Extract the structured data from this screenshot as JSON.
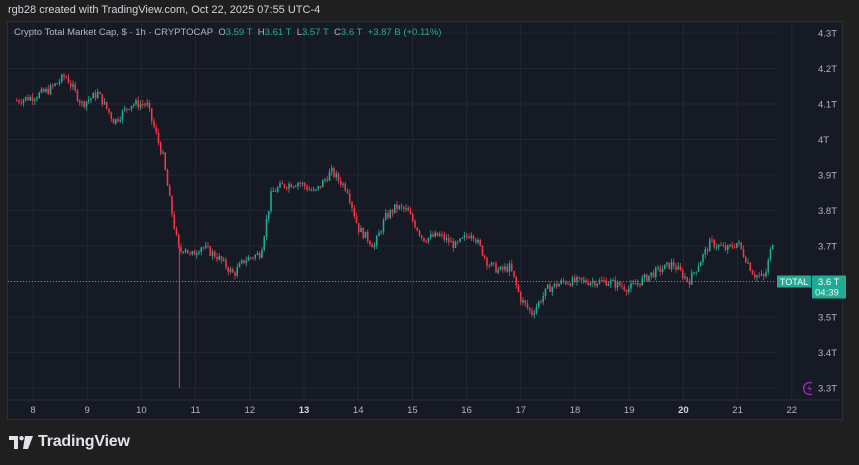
{
  "header": {
    "credit": "rgb28 created with TradingView.com, Oct 22, 2025 07:55 UTC-4"
  },
  "legend": {
    "title": "Crypto Total Market Cap, $ · 1h · CRYPTOCAP",
    "o_label": "O",
    "o": "3.59 T",
    "h_label": "H",
    "h": "3.61 T",
    "l_label": "L",
    "l": "3.57 T",
    "c_label": "C",
    "c": "3.6 T",
    "change": "+3.87 B (+0.11%)"
  },
  "price_label": {
    "symbol": "TOTAL",
    "price": "3.6 T",
    "countdown": "04:39"
  },
  "footer": {
    "brand": "TradingView"
  },
  "colors": {
    "up": "#22ab94",
    "down": "#f23645",
    "bg": "#161a25",
    "grid": "#232734",
    "axis_text": "#b2b5be",
    "lightning": "#9c27b0"
  },
  "chart_data": {
    "type": "candlestick",
    "title": "Crypto Total Market Cap, $ · 1h · CRYPTOCAP",
    "xlabel": "",
    "ylabel": "",
    "x_ticks": [
      "8",
      "9",
      "10",
      "11",
      "12",
      "13",
      "14",
      "15",
      "16",
      "17",
      "18",
      "19",
      "20",
      "21",
      "22"
    ],
    "x_ticks_bold": [
      "13",
      "20"
    ],
    "y_ticks": [
      "4.3T",
      "4.2T",
      "4.1T",
      "4T",
      "3.9T",
      "3.8T",
      "3.7T",
      "3.6T",
      "3.5T",
      "3.4T",
      "3.3T"
    ],
    "ylim": [
      3.27,
      4.33
    ],
    "grid": true,
    "approx_close_path": {
      "x_day": [
        7.7,
        8.0,
        8.3,
        8.6,
        8.9,
        9.2,
        9.5,
        9.8,
        10.1,
        10.4,
        10.5,
        10.6,
        10.7,
        10.8,
        10.9,
        11.1,
        11.4,
        11.7,
        11.9,
        12.2,
        12.4,
        12.6,
        12.9,
        13.2,
        13.5,
        13.8,
        14.0,
        14.3,
        14.5,
        14.7,
        14.9,
        15.2,
        15.5,
        15.8,
        16.1,
        16.4,
        16.6,
        16.8,
        17.0,
        17.2,
        17.5,
        17.8,
        18.2,
        18.6,
        19.0,
        19.4,
        19.8,
        20.1,
        20.5,
        20.8,
        21.0,
        21.3,
        21.5,
        21.7,
        21.9,
        22.1,
        22.3
      ],
      "value_T": [
        4.11,
        4.12,
        4.14,
        4.18,
        4.1,
        4.13,
        4.05,
        4.1,
        4.1,
        3.95,
        3.85,
        3.76,
        3.68,
        3.7,
        3.67,
        3.7,
        3.67,
        3.62,
        3.66,
        3.68,
        3.85,
        3.87,
        3.88,
        3.85,
        3.91,
        3.86,
        3.75,
        3.7,
        3.78,
        3.81,
        3.8,
        3.72,
        3.73,
        3.7,
        3.74,
        3.65,
        3.63,
        3.64,
        3.55,
        3.51,
        3.58,
        3.6,
        3.6,
        3.6,
        3.58,
        3.62,
        3.65,
        3.6,
        3.71,
        3.69,
        3.71,
        3.62,
        3.61,
        3.75,
        3.69,
        3.62,
        3.6
      ],
      "spike_low_T": {
        "x_day": 10.7,
        "value": 3.3
      }
    },
    "last": {
      "open": 3.59,
      "high": 3.61,
      "low": 3.57,
      "close": 3.6,
      "change": "+3.87 B",
      "change_pct": "+0.11%"
    }
  }
}
